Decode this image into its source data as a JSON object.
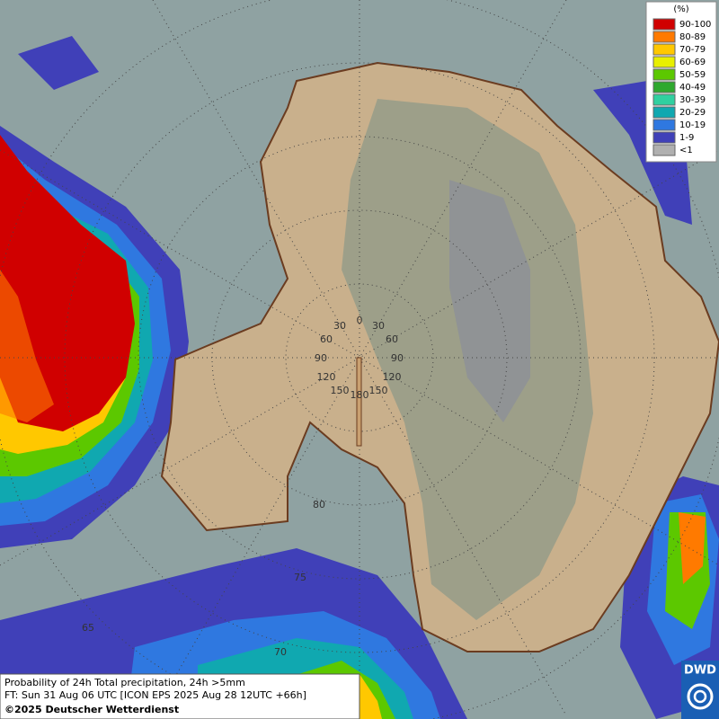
{
  "legend": {
    "title": "(%)",
    "items": [
      {
        "label": "90-100",
        "color": "#d00000"
      },
      {
        "label": "80-89",
        "color": "#ff7a00"
      },
      {
        "label": "70-79",
        "color": "#ffc800"
      },
      {
        "label": "60-69",
        "color": "#e8ef00"
      },
      {
        "label": "50-59",
        "color": "#5cc800"
      },
      {
        "label": "40-49",
        "color": "#2ea82e"
      },
      {
        "label": "30-39",
        "color": "#30d0a0"
      },
      {
        "label": "20-29",
        "color": "#10a8b0"
      },
      {
        "label": "10-19",
        "color": "#2f78e0"
      },
      {
        "label": "1-9",
        "color": "#4040b8"
      },
      {
        "label": "<1",
        "color": "#b0b0b0"
      }
    ]
  },
  "graticule_labels": [
    "0",
    "30",
    "30",
    "60",
    "60",
    "90",
    "90",
    "120",
    "120",
    "150",
    "150",
    "180",
    "80",
    "75",
    "70",
    "65"
  ],
  "footer": {
    "line1": "Probability of 24h Total precipitation, 24h >5mm",
    "line2": "FT: Sun 31 Aug 06 UTC [ICON EPS 2025 Aug 28 12UTC +66h]",
    "line3": "©2025 Deutscher Wetterdienst"
  },
  "logo": "DWD"
}
